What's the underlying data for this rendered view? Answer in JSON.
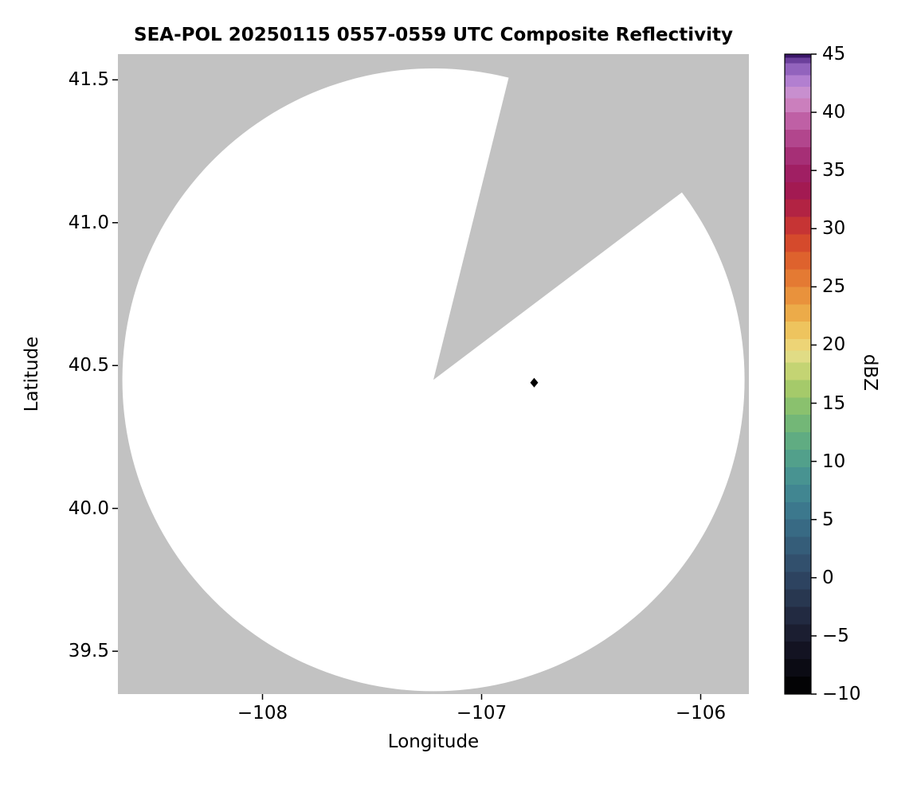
{
  "figure": {
    "title": "SEA-POL 20250115 0557-0559 UTC Composite Reflectivity",
    "xlabel": "Longitude",
    "ylabel": "Latitude",
    "colorbar_label": "dBZ",
    "background_color": "#ffffff",
    "text_color": "#000000"
  },
  "chart_data": {
    "type": "heatmap",
    "title": "SEA-POL 20250115 0557-0559 UTC Composite Reflectivity",
    "xlabel": "Longitude",
    "ylabel": "Latitude",
    "xlim": [
      -108.66,
      -105.78
    ],
    "ylim": [
      39.35,
      41.59
    ],
    "x_ticks": [
      -108,
      -107,
      -106
    ],
    "x_tick_labels": [
      "−108",
      "−107",
      "−106"
    ],
    "y_ticks": [
      39.5,
      40.0,
      40.5,
      41.0,
      41.5
    ],
    "y_tick_labels": [
      "39.5",
      "40.0",
      "40.5",
      "41.0",
      "41.5"
    ],
    "grid": false,
    "legend": "colorbar-right",
    "colorbar": {
      "label": "dBZ",
      "min": -10,
      "max": 45,
      "ticks": [
        45,
        40,
        35,
        30,
        25,
        20,
        15,
        10,
        5,
        0,
        -5,
        -10
      ],
      "tick_labels": [
        "45",
        "40",
        "35",
        "30",
        "25",
        "20",
        "15",
        "10",
        "5",
        "0",
        "−5",
        "−10"
      ],
      "outline_color": "#000000",
      "stops": [
        [
          -10,
          "#030305"
        ],
        [
          -8.5,
          "#0b0b14"
        ],
        [
          -7,
          "#131322"
        ],
        [
          -5.5,
          "#1b1e31"
        ],
        [
          -4,
          "#222a41"
        ],
        [
          -2.5,
          "#283750"
        ],
        [
          -1,
          "#2d4360"
        ],
        [
          0.5,
          "#32506d"
        ],
        [
          2,
          "#355d79"
        ],
        [
          3.5,
          "#386a84"
        ],
        [
          5,
          "#3c788d"
        ],
        [
          6.5,
          "#418691"
        ],
        [
          8,
          "#489391"
        ],
        [
          9.5,
          "#52a08b"
        ],
        [
          11,
          "#60ac82"
        ],
        [
          12.5,
          "#73b777"
        ],
        [
          14,
          "#8ac16e"
        ],
        [
          15.5,
          "#a5ca6a"
        ],
        [
          17,
          "#c4d473"
        ],
        [
          18.5,
          "#e0dc85"
        ],
        [
          19.5,
          "#edd476"
        ],
        [
          20.5,
          "#eec45e"
        ],
        [
          22,
          "#ecab49"
        ],
        [
          23.5,
          "#e9923c"
        ],
        [
          25,
          "#e47a33"
        ],
        [
          26.5,
          "#de622d"
        ],
        [
          28,
          "#d54a2c"
        ],
        [
          29.5,
          "#c63434"
        ],
        [
          31,
          "#b22343"
        ],
        [
          32.5,
          "#a31a52"
        ],
        [
          34,
          "#a01f63"
        ],
        [
          35.5,
          "#a62f76"
        ],
        [
          37,
          "#b2468d"
        ],
        [
          38.5,
          "#bf60a5"
        ],
        [
          40,
          "#cb7fbd"
        ],
        [
          41.2,
          "#c88fcf"
        ],
        [
          42.2,
          "#b27fd0"
        ],
        [
          43.2,
          "#9263bd"
        ],
        [
          44.2,
          "#6b3f9b"
        ],
        [
          44.7,
          "#3a1668"
        ]
      ]
    },
    "coverage": {
      "description": "White circular radar scan area (no echoes above threshold) on gray no-coverage background; gray wedge = blocked/missing sector",
      "no_data_color": "#c2c2c2",
      "no_echo_color": "#ffffff",
      "center": {
        "lon": -107.22,
        "lat": 40.45
      },
      "radius_deg": {
        "lon": 1.42,
        "lat": 1.09
      },
      "missing_sector_azimuth_deg": [
        14,
        53
      ]
    },
    "points": [
      {
        "lon": -106.76,
        "lat": 40.44,
        "marker": "diamond",
        "color": "#000000",
        "note": "small reflectivity echo"
      }
    ]
  }
}
